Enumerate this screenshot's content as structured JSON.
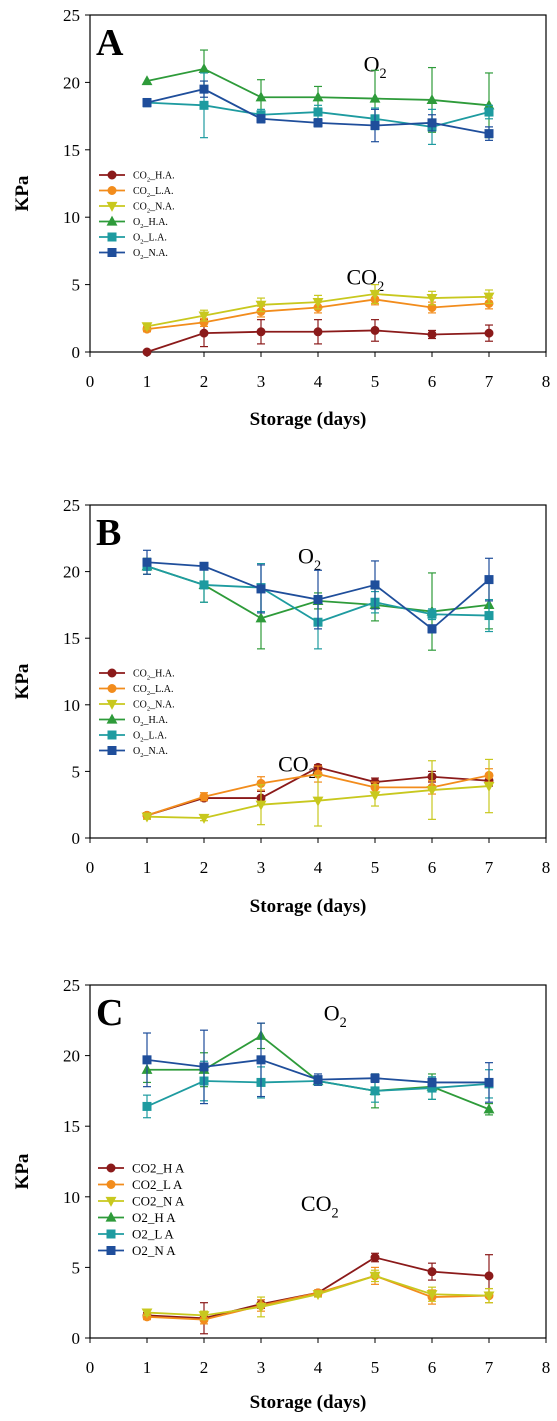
{
  "chart_data": [
    {
      "type": "line",
      "panel_label": "A",
      "xlabel": "Storage (days)",
      "ylabel": "KPa",
      "xlim": [
        0,
        8
      ],
      "ylim": [
        0,
        25
      ],
      "xticks": [
        "0",
        "1",
        "2",
        "3",
        "4",
        "5",
        "6",
        "7",
        "8"
      ],
      "yticks": [
        "0",
        "5",
        "10",
        "15",
        "20",
        "25"
      ],
      "legend_position": "left-middle",
      "annotations": [
        {
          "base": "O",
          "sub": "2",
          "x": 4.8,
          "y": 20.8
        },
        {
          "base": "CO",
          "sub": "2",
          "x": 4.5,
          "y": 5.0
        }
      ],
      "legend": [
        {
          "base": "CO",
          "sub": "2",
          "rest": "_H.A."
        },
        {
          "base": "CO",
          "sub": "2",
          "rest": "_L.A."
        },
        {
          "base": "CO",
          "sub": "2",
          "rest": "_N.A."
        },
        {
          "base": "O",
          "sub": "2",
          "rest": "_H.A."
        },
        {
          "base": "O",
          "sub": "2",
          "rest": "_L.A."
        },
        {
          "base": "O",
          "sub": "2",
          "rest": "_N.A."
        }
      ],
      "x": [
        1,
        2,
        3,
        4,
        5,
        6,
        7
      ],
      "series": [
        {
          "color": "#8B1A1A",
          "marker": "circle",
          "values": [
            0.0,
            1.4,
            1.5,
            1.5,
            1.6,
            1.3,
            1.4
          ],
          "err": [
            0.0,
            1.0,
            0.9,
            0.9,
            0.8,
            0.3,
            0.6
          ]
        },
        {
          "color": "#F28C1C",
          "marker": "circle",
          "values": [
            1.7,
            2.2,
            3.0,
            3.3,
            3.9,
            3.3,
            3.6
          ],
          "err": [
            0.2,
            0.3,
            0.4,
            0.4,
            0.4,
            0.4,
            0.4
          ]
        },
        {
          "color": "#C8C81E",
          "marker": "triangle-down",
          "values": [
            1.9,
            2.7,
            3.5,
            3.7,
            4.3,
            4.0,
            4.1
          ],
          "err": [
            0.2,
            0.4,
            0.5,
            0.5,
            0.7,
            0.5,
            0.5
          ]
        },
        {
          "color": "#2E9B3A",
          "marker": "triangle-up",
          "values": [
            20.1,
            21.0,
            18.9,
            18.9,
            18.8,
            18.7,
            18.3
          ],
          "err": [
            0.0,
            1.4,
            1.3,
            0.8,
            2.1,
            2.4,
            2.4
          ]
        },
        {
          "color": "#1E9BA0",
          "marker": "square",
          "values": [
            18.5,
            18.3,
            17.6,
            17.8,
            17.3,
            16.7,
            17.8
          ],
          "err": [
            0.0,
            2.4,
            0.4,
            0.5,
            0.8,
            1.3,
            0.5
          ]
        },
        {
          "color": "#1F4E9B",
          "marker": "square",
          "values": [
            18.5,
            19.5,
            17.3,
            17.0,
            16.8,
            17.0,
            16.2
          ],
          "err": [
            0.3,
            0.6,
            0.3,
            0.3,
            1.2,
            0.6,
            0.5
          ]
        }
      ]
    },
    {
      "type": "line",
      "panel_label": "B",
      "xlabel": "Storage (days)",
      "ylabel": "KPa",
      "xlim": [
        0,
        8
      ],
      "ylim": [
        0,
        25
      ],
      "xticks": [
        "0",
        "1",
        "2",
        "3",
        "4",
        "5",
        "6",
        "7",
        "8"
      ],
      "yticks": [
        "0",
        "5",
        "10",
        "15",
        "20",
        "25"
      ],
      "legend_position": "left-middle",
      "annotations": [
        {
          "base": "O",
          "sub": "2",
          "x": 3.65,
          "y": 20.6
        },
        {
          "base": "CO",
          "sub": "2",
          "x": 3.3,
          "y": 5.0
        }
      ],
      "legend": [
        {
          "base": "CO",
          "sub": "2",
          "rest": "_H.A."
        },
        {
          "base": "CO",
          "sub": "2",
          "rest": "_L.A."
        },
        {
          "base": "CO",
          "sub": "2",
          "rest": "_N.A."
        },
        {
          "base": "O",
          "sub": "2",
          "rest": "_H.A."
        },
        {
          "base": "O",
          "sub": "2",
          "rest": "_L.A."
        },
        {
          "base": "O",
          "sub": "2",
          "rest": "_N.A."
        }
      ],
      "x": [
        1,
        2,
        3,
        4,
        5,
        6,
        7
      ],
      "series": [
        {
          "color": "#8B1A1A",
          "marker": "circle",
          "values": [
            1.7,
            3.0,
            3.0,
            5.3,
            4.2,
            4.6,
            4.3
          ],
          "err": [
            0.2,
            0.2,
            0.5,
            0.2,
            0.3,
            0.4,
            0.4
          ]
        },
        {
          "color": "#F28C1C",
          "marker": "circle",
          "values": [
            1.7,
            3.1,
            4.1,
            4.8,
            3.8,
            3.8,
            4.7
          ],
          "err": [
            0.2,
            0.3,
            0.5,
            0.6,
            0.4,
            0.5,
            0.5
          ]
        },
        {
          "color": "#C8C81E",
          "marker": "triangle-down",
          "values": [
            1.6,
            1.5,
            2.5,
            2.8,
            3.2,
            3.6,
            3.9
          ],
          "err": [
            0.2,
            0.2,
            1.5,
            1.9,
            0.8,
            2.2,
            2.0
          ]
        },
        {
          "color": "#2E9B3A",
          "marker": "triangle-up",
          "values": [
            20.4,
            19.0,
            16.5,
            17.8,
            17.5,
            17.0,
            17.5
          ],
          "err": [
            0.6,
            1.3,
            2.3,
            0.6,
            1.2,
            2.9,
            1.8
          ]
        },
        {
          "color": "#1E9BA0",
          "marker": "square",
          "values": [
            20.4,
            19.0,
            18.8,
            16.2,
            17.7,
            16.8,
            16.7
          ],
          "err": [
            0.3,
            1.3,
            1.8,
            2.0,
            0.8,
            0.4,
            1.2
          ]
        },
        {
          "color": "#1F4E9B",
          "marker": "square",
          "values": [
            20.7,
            20.4,
            18.7,
            17.9,
            19.0,
            15.7,
            19.4
          ],
          "err": [
            0.9,
            0.2,
            1.8,
            2.2,
            1.8,
            0.3,
            1.6
          ]
        }
      ]
    },
    {
      "type": "line",
      "panel_label": "C",
      "xlabel": "Storage (days)",
      "ylabel": "KPa",
      "xlim": [
        0,
        8
      ],
      "ylim": [
        0,
        25
      ],
      "xticks": [
        "0",
        "1",
        "2",
        "3",
        "4",
        "5",
        "6",
        "7",
        "8"
      ],
      "yticks": [
        "0",
        "5",
        "10",
        "15",
        "20",
        "25"
      ],
      "legend_position": "left-middle",
      "annotations": [
        {
          "base": "O",
          "sub": "2",
          "x": 4.1,
          "y": 22.5
        },
        {
          "base": "CO",
          "sub": "2",
          "x": 3.7,
          "y": 9.0
        }
      ],
      "legend": [
        {
          "base": "CO2_H A",
          "sub": "",
          "rest": ""
        },
        {
          "base": "CO2_L A",
          "sub": "",
          "rest": ""
        },
        {
          "base": "CO2_N A",
          "sub": "",
          "rest": ""
        },
        {
          "base": "O2_H A",
          "sub": "",
          "rest": ""
        },
        {
          "base": "O2_L A",
          "sub": "",
          "rest": ""
        },
        {
          "base": "O2_N A",
          "sub": "",
          "rest": ""
        }
      ],
      "x": [
        1,
        2,
        3,
        4,
        5,
        6,
        7
      ],
      "series": [
        {
          "color": "#8B1A1A",
          "marker": "circle",
          "values": [
            1.6,
            1.4,
            2.4,
            3.2,
            5.7,
            4.7,
            4.4
          ],
          "err": [
            0.2,
            1.1,
            0.3,
            0.2,
            0.3,
            0.6,
            1.5
          ]
        },
        {
          "color": "#F28C1C",
          "marker": "circle",
          "values": [
            1.5,
            1.3,
            2.3,
            3.2,
            4.4,
            2.9,
            3.0
          ],
          "err": [
            0.2,
            0.3,
            0.4,
            0.2,
            0.6,
            0.5,
            0.5
          ]
        },
        {
          "color": "#C8C81E",
          "marker": "triangle-down",
          "values": [
            1.8,
            1.6,
            2.2,
            3.1,
            4.4,
            3.1,
            3.0
          ],
          "err": [
            0.2,
            0.3,
            0.7,
            0.2,
            0.4,
            0.5,
            0.5
          ]
        },
        {
          "color": "#2E9B3A",
          "marker": "triangle-up",
          "values": [
            19.0,
            19.0,
            21.4,
            18.2,
            17.5,
            17.8,
            16.2
          ],
          "err": [
            0.9,
            1.2,
            0.9,
            0.2,
            1.2,
            0.9,
            0.4
          ]
        },
        {
          "color": "#1E9BA0",
          "marker": "square",
          "values": [
            16.4,
            18.2,
            18.1,
            18.2,
            17.5,
            17.7,
            18.0
          ],
          "err": [
            0.8,
            1.4,
            1.1,
            0.3,
            0.8,
            0.8,
            1.0
          ]
        },
        {
          "color": "#1F4E9B",
          "marker": "square",
          "values": [
            19.7,
            19.2,
            19.7,
            18.3,
            18.4,
            18.1,
            18.1
          ],
          "err": [
            1.9,
            2.6,
            2.6,
            0.4,
            0.3,
            0.3,
            1.4
          ]
        }
      ]
    }
  ]
}
